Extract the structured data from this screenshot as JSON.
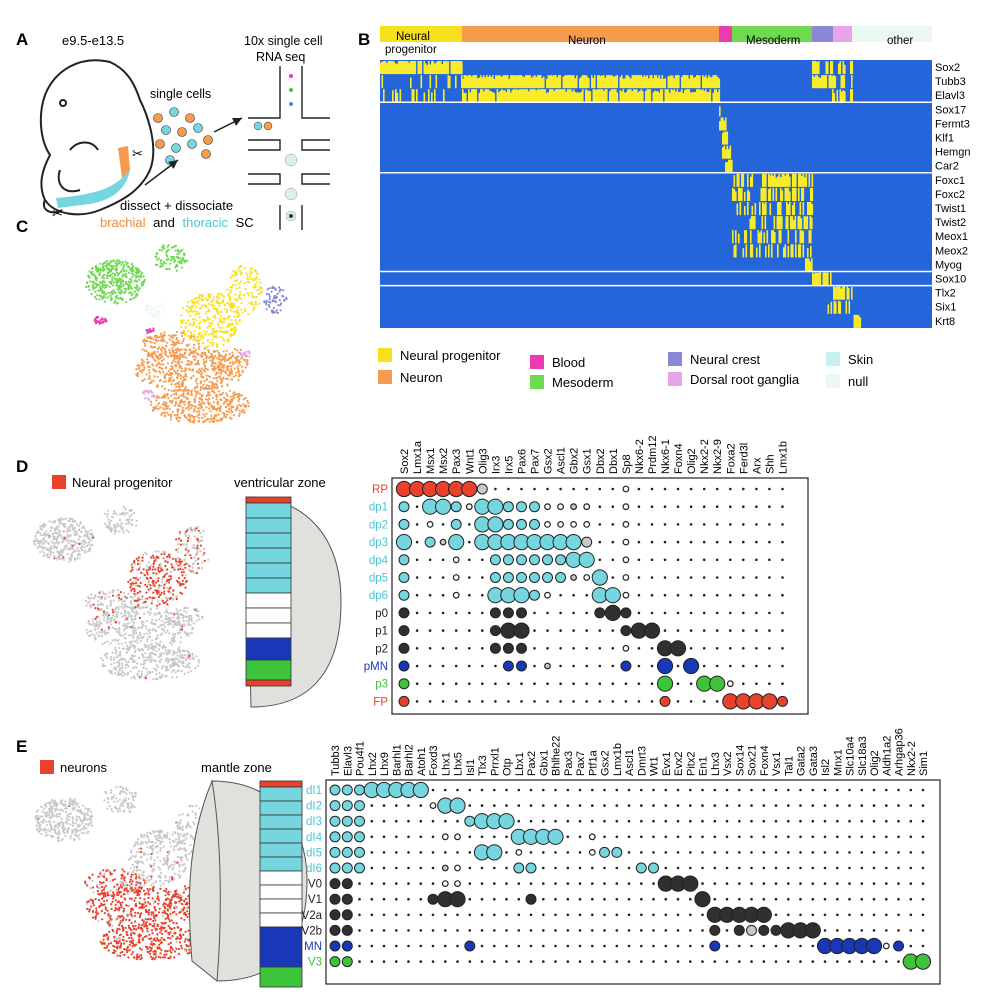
{
  "panel_letters": {
    "A": "A",
    "B": "B",
    "C": "C",
    "D": "D",
    "E": "E"
  },
  "panelA": {
    "age": "e9.5-e13.5",
    "seq_title_1": "10x single cell",
    "seq_title_2": "RNA seq",
    "single_cells": "single cells",
    "dissect": "dissect + dissociate",
    "brachial": "brachial",
    "and": "and",
    "thoracic": "thoracic",
    "sc": "SC"
  },
  "colors": {
    "neural_progenitor": "#f7e11d",
    "neuron": "#f59b4e",
    "blood": "#ec3bb0",
    "mesoderm": "#6fd950",
    "neural_crest": "#8a87d6",
    "drg": "#e7a4e6",
    "skin": "#c8f0ee",
    "null": "#eaf8ef",
    "heat_bg": "#2466d9",
    "heat_hi": "#f8ec2a",
    "red": "#e8412c",
    "cyan": "#76d6e0",
    "dark": "#303030",
    "blue": "#1838b8",
    "green": "#3ec43a",
    "grey_dot": "#c8c8c8"
  },
  "panelB": {
    "bar_labels": {
      "np1": "Neural",
      "np2": "progenitor",
      "neuron": "Neuron",
      "mesoderm": "Mesoderm",
      "other": "other"
    },
    "genes": [
      "Sox2",
      "Tubb3",
      "Elavl3",
      "Sox17",
      "Fermt3",
      "Klf1",
      "Hemgn",
      "Car2",
      "Foxc1",
      "Foxc2",
      "Twist1",
      "Twist2",
      "Meox1",
      "Meox2",
      "Myog",
      "Sox10",
      "Tlx2",
      "Six1",
      "Krt8"
    ],
    "legend": [
      {
        "label": "Neural progenitor",
        "color": "#f7e11d"
      },
      {
        "label": "Neuron",
        "color": "#f59b4e"
      },
      {
        "label": "Blood",
        "color": "#ec3bb0"
      },
      {
        "label": "Mesoderm",
        "color": "#6fd950"
      },
      {
        "label": "Neural crest",
        "color": "#8a87d6"
      },
      {
        "label": "Dorsal root ganglia",
        "color": "#e7a4e6"
      },
      {
        "label": "Skin",
        "color": "#c8f0ee"
      },
      {
        "label": "null",
        "color": "#eaf8ef"
      }
    ]
  },
  "panelD": {
    "title": "Neural progenitor",
    "zone": "ventricular zone",
    "genes": [
      "Sox2",
      "Lmx1a",
      "Msx1",
      "Msx2",
      "Pax3",
      "Wnt1",
      "Olig3",
      "Irx3",
      "Irx5",
      "Pax6",
      "Pax7",
      "Gsx2",
      "Ascl1",
      "Gbx2",
      "Gsx1",
      "Dbx2",
      "Dbx1",
      "Sp8",
      "Nkx6-2",
      "Prdm12",
      "Nkx6-1",
      "Foxn4",
      "Olig2",
      "Nkx2-2",
      "Nkx2-9",
      "Foxa2",
      "Ferd3l",
      "Arx",
      "Shh",
      "Lmx1b"
    ],
    "rows": [
      {
        "label": "RP",
        "class": "red",
        "dots": [
          3,
          3,
          3,
          3,
          3,
          3,
          2,
          0,
          0,
          0,
          0,
          0,
          0,
          0,
          0,
          0,
          0,
          1,
          0,
          0,
          0,
          0,
          0,
          0,
          0,
          0,
          0,
          0,
          0,
          0
        ],
        "grey": [
          6
        ]
      },
      {
        "label": "dp1",
        "class": "cyan",
        "dots": [
          2,
          0,
          3,
          3,
          2,
          1,
          3,
          3,
          2,
          2,
          2,
          1,
          1,
          1,
          1,
          0,
          0,
          1,
          0,
          0,
          0,
          0,
          0,
          0,
          0,
          0,
          0,
          0,
          0,
          0
        ],
        "grey": [
          13
        ]
      },
      {
        "label": "dp2",
        "class": "cyan",
        "dots": [
          2,
          0,
          1,
          0,
          2,
          0,
          3,
          3,
          2,
          2,
          2,
          1,
          1,
          1,
          1,
          0,
          0,
          1,
          0,
          0,
          0,
          0,
          0,
          0,
          0,
          0,
          0,
          0,
          0,
          0
        ],
        "grey": []
      },
      {
        "label": "dp3",
        "class": "cyan",
        "dots": [
          3,
          0,
          2,
          1,
          3,
          0,
          3,
          3,
          3,
          3,
          3,
          3,
          3,
          3,
          2,
          0,
          0,
          1,
          0,
          0,
          0,
          0,
          0,
          0,
          0,
          0,
          0,
          0,
          0,
          0
        ],
        "grey": [
          3,
          14
        ]
      },
      {
        "label": "dp4",
        "class": "cyan",
        "dots": [
          2,
          0,
          0,
          0,
          1,
          0,
          0,
          2,
          2,
          2,
          2,
          2,
          2,
          3,
          3,
          0,
          0,
          1,
          0,
          0,
          0,
          0,
          0,
          0,
          0,
          0,
          0,
          0,
          0,
          0
        ],
        "grey": []
      },
      {
        "label": "dp5",
        "class": "cyan",
        "dots": [
          2,
          0,
          0,
          0,
          1,
          0,
          0,
          2,
          2,
          2,
          2,
          2,
          2,
          1,
          1,
          3,
          0,
          1,
          0,
          0,
          0,
          0,
          0,
          0,
          0,
          0,
          0,
          0,
          0,
          0
        ],
        "grey": [
          13
        ]
      },
      {
        "label": "dp6",
        "class": "cyan",
        "dots": [
          2,
          0,
          0,
          0,
          1,
          0,
          0,
          3,
          3,
          3,
          2,
          1,
          0,
          0,
          0,
          3,
          3,
          1,
          0,
          0,
          0,
          0,
          0,
          0,
          0,
          0,
          0,
          0,
          0,
          0
        ],
        "grey": []
      },
      {
        "label": "p0",
        "class": "dark",
        "dots": [
          2,
          0,
          0,
          0,
          0,
          0,
          0,
          2,
          2,
          2,
          0,
          0,
          0,
          0,
          0,
          2,
          3,
          2,
          0,
          0,
          0,
          0,
          0,
          0,
          0,
          0,
          0,
          0,
          0,
          0
        ],
        "grey": []
      },
      {
        "label": "p1",
        "class": "dark",
        "dots": [
          2,
          0,
          0,
          0,
          0,
          0,
          0,
          2,
          3,
          3,
          0,
          0,
          0,
          0,
          0,
          0,
          0,
          2,
          3,
          3,
          0,
          0,
          0,
          0,
          0,
          0,
          0,
          0,
          0,
          0
        ],
        "grey": []
      },
      {
        "label": "p2",
        "class": "dark",
        "dots": [
          2,
          0,
          0,
          0,
          0,
          0,
          0,
          2,
          2,
          2,
          0,
          0,
          0,
          0,
          0,
          0,
          0,
          1,
          0,
          0,
          3,
          3,
          0,
          0,
          0,
          0,
          0,
          0,
          0,
          0
        ],
        "grey": []
      },
      {
        "label": "pMN",
        "class": "blue",
        "dots": [
          2,
          0,
          0,
          0,
          0,
          0,
          0,
          0,
          2,
          2,
          0,
          1,
          0,
          0,
          0,
          0,
          0,
          2,
          0,
          0,
          3,
          0,
          3,
          0,
          0,
          0,
          0,
          0,
          0,
          0
        ],
        "grey": [
          11
        ]
      },
      {
        "label": "p3",
        "class": "green",
        "dots": [
          2,
          0,
          0,
          0,
          0,
          0,
          0,
          0,
          0,
          0,
          0,
          0,
          0,
          0,
          0,
          0,
          0,
          0,
          0,
          0,
          3,
          0,
          0,
          3,
          3,
          1,
          0,
          0,
          0,
          0
        ],
        "grey": []
      },
      {
        "label": "FP",
        "class": "red",
        "dots": [
          2,
          0,
          0,
          0,
          0,
          0,
          0,
          0,
          0,
          0,
          0,
          0,
          0,
          0,
          0,
          0,
          0,
          0,
          0,
          0,
          2,
          0,
          0,
          0,
          0,
          3,
          3,
          3,
          3,
          2
        ],
        "grey": []
      }
    ]
  },
  "panelE": {
    "title": "neurons",
    "zone": "mantle zone",
    "genes": [
      "Tubb3",
      "Elavl3",
      "Pou4f1",
      "Lhx2",
      "Lhx9",
      "Barhl1",
      "Barhl2",
      "Atoh1",
      "Foxd3",
      "Lhx1",
      "Lhx5",
      "Isl1",
      "Tlx3",
      "Prrxl1",
      "Otp",
      "Lbx1",
      "Pax2",
      "Gbx1",
      "Bhlhe22",
      "Pax3",
      "Pax7",
      "Ptf1a",
      "Gsx2",
      "Lmx1b",
      "Ascl1",
      "Dmrt3",
      "Wt1",
      "Evx1",
      "Evx2",
      "Pitx2",
      "En1",
      "Lhx3",
      "Vsx2",
      "Sox14",
      "Sox21",
      "Foxn4",
      "Vsx1",
      "Tal1",
      "Gata2",
      "Gata3",
      "Isl2",
      "Mnx1",
      "Slc10a4",
      "Slc18a3",
      "Olig2",
      "Aldh1a2",
      "Arhgap36",
      "Nkx2-2",
      "Sim1"
    ],
    "rows": [
      {
        "label": "dI1",
        "class": "cyan",
        "dots": [
          2,
          2,
          2,
          3,
          3,
          3,
          3,
          3,
          0,
          0,
          0,
          0,
          0,
          0,
          0,
          0,
          0,
          0,
          0,
          0,
          0,
          0,
          0,
          0,
          0,
          0,
          0,
          0,
          0,
          0,
          0,
          0,
          0,
          0,
          0,
          0,
          0,
          0,
          0,
          0,
          0,
          0,
          0,
          0,
          0,
          0,
          0,
          0,
          0
        ],
        "grey": []
      },
      {
        "label": "dI2",
        "class": "cyan",
        "dots": [
          2,
          2,
          2,
          0,
          0,
          0,
          0,
          0,
          1,
          3,
          3,
          0,
          0,
          0,
          0,
          0,
          0,
          0,
          0,
          0,
          0,
          0,
          0,
          0,
          0,
          0,
          0,
          0,
          0,
          0,
          0,
          0,
          0,
          0,
          0,
          0,
          0,
          0,
          0,
          0,
          0,
          0,
          0,
          0,
          0,
          0,
          0,
          0,
          0
        ],
        "grey": []
      },
      {
        "label": "dI3",
        "class": "cyan",
        "dots": [
          2,
          2,
          2,
          0,
          0,
          0,
          0,
          0,
          0,
          0,
          0,
          2,
          3,
          3,
          3,
          0,
          0,
          0,
          0,
          0,
          0,
          0,
          0,
          0,
          0,
          0,
          0,
          0,
          0,
          0,
          0,
          0,
          0,
          0,
          0,
          0,
          0,
          0,
          0,
          0,
          0,
          0,
          0,
          0,
          0,
          0,
          0,
          0,
          0
        ],
        "grey": []
      },
      {
        "label": "dI4",
        "class": "cyan",
        "dots": [
          2,
          2,
          2,
          0,
          0,
          0,
          0,
          0,
          0,
          1,
          1,
          0,
          0,
          0,
          0,
          3,
          3,
          3,
          3,
          0,
          0,
          1,
          0,
          0,
          0,
          0,
          0,
          0,
          0,
          0,
          0,
          0,
          0,
          0,
          0,
          0,
          0,
          0,
          0,
          0,
          0,
          0,
          0,
          0,
          0,
          0,
          0,
          0,
          0
        ],
        "grey": []
      },
      {
        "label": "dI5",
        "class": "cyan",
        "dots": [
          2,
          2,
          2,
          0,
          0,
          0,
          0,
          0,
          0,
          0,
          0,
          0,
          3,
          3,
          0,
          1,
          0,
          0,
          0,
          0,
          0,
          1,
          2,
          2,
          0,
          0,
          0,
          0,
          0,
          0,
          0,
          0,
          0,
          0,
          0,
          0,
          0,
          0,
          0,
          0,
          0,
          0,
          0,
          0,
          0,
          0,
          0,
          0,
          0
        ],
        "grey": []
      },
      {
        "label": "dI6",
        "class": "cyan",
        "dots": [
          2,
          2,
          2,
          0,
          0,
          0,
          0,
          0,
          0,
          1,
          1,
          0,
          0,
          0,
          0,
          2,
          2,
          0,
          0,
          0,
          0,
          0,
          0,
          0,
          0,
          2,
          2,
          0,
          0,
          0,
          0,
          0,
          0,
          0,
          0,
          0,
          0,
          0,
          0,
          0,
          0,
          0,
          0,
          0,
          0,
          0,
          0,
          0,
          0
        ],
        "grey": [
          9
        ]
      },
      {
        "label": "V0",
        "class": "dark",
        "dots": [
          2,
          2,
          0,
          0,
          0,
          0,
          0,
          0,
          0,
          1,
          1,
          0,
          0,
          0,
          0,
          0,
          0,
          0,
          0,
          0,
          0,
          0,
          0,
          0,
          0,
          0,
          0,
          3,
          3,
          3,
          0,
          0,
          0,
          0,
          0,
          0,
          0,
          0,
          0,
          0,
          0,
          0,
          0,
          0,
          0,
          0,
          0,
          0,
          0
        ],
        "grey": []
      },
      {
        "label": "V1",
        "class": "dark",
        "dots": [
          2,
          2,
          0,
          0,
          0,
          0,
          0,
          0,
          2,
          3,
          3,
          0,
          0,
          0,
          0,
          0,
          2,
          0,
          0,
          0,
          0,
          0,
          0,
          0,
          0,
          0,
          0,
          0,
          0,
          0,
          3,
          0,
          0,
          0,
          0,
          0,
          0,
          0,
          0,
          0,
          0,
          0,
          0,
          0,
          0,
          0,
          0,
          0,
          0
        ],
        "grey": []
      },
      {
        "label": "V2a",
        "class": "dark",
        "dots": [
          2,
          2,
          0,
          0,
          0,
          0,
          0,
          0,
          0,
          0,
          0,
          0,
          0,
          0,
          0,
          0,
          0,
          0,
          0,
          0,
          0,
          0,
          0,
          0,
          0,
          0,
          0,
          0,
          0,
          0,
          0,
          3,
          3,
          3,
          3,
          3,
          0,
          0,
          0,
          0,
          0,
          0,
          0,
          0,
          0,
          0,
          0,
          0,
          0
        ],
        "grey": []
      },
      {
        "label": "V2b",
        "class": "dark",
        "dots": [
          2,
          2,
          0,
          0,
          0,
          0,
          0,
          0,
          0,
          0,
          0,
          0,
          0,
          0,
          0,
          0,
          0,
          0,
          0,
          0,
          0,
          0,
          0,
          0,
          0,
          0,
          0,
          0,
          0,
          0,
          0,
          2,
          0,
          2,
          2,
          2,
          2,
          3,
          3,
          3,
          0,
          0,
          0,
          0,
          0,
          0,
          0,
          0,
          0
        ],
        "grey": [
          34
        ]
      },
      {
        "label": "MN",
        "class": "blue",
        "dots": [
          2,
          2,
          0,
          0,
          0,
          0,
          0,
          0,
          0,
          0,
          0,
          2,
          0,
          0,
          0,
          0,
          0,
          0,
          0,
          0,
          0,
          0,
          0,
          0,
          0,
          0,
          0,
          0,
          0,
          0,
          0,
          2,
          0,
          0,
          0,
          0,
          0,
          0,
          0,
          0,
          3,
          3,
          3,
          3,
          3,
          1,
          2,
          0,
          0
        ],
        "grey": []
      },
      {
        "label": "V3",
        "class": "green",
        "dots": [
          2,
          2,
          0,
          0,
          0,
          0,
          0,
          0,
          0,
          0,
          0,
          0,
          0,
          0,
          0,
          0,
          0,
          0,
          0,
          0,
          0,
          0,
          0,
          0,
          0,
          0,
          0,
          0,
          0,
          0,
          0,
          0,
          0,
          0,
          0,
          0,
          0,
          0,
          0,
          0,
          0,
          0,
          0,
          0,
          0,
          0,
          0,
          3,
          3
        ],
        "grey": []
      }
    ]
  }
}
